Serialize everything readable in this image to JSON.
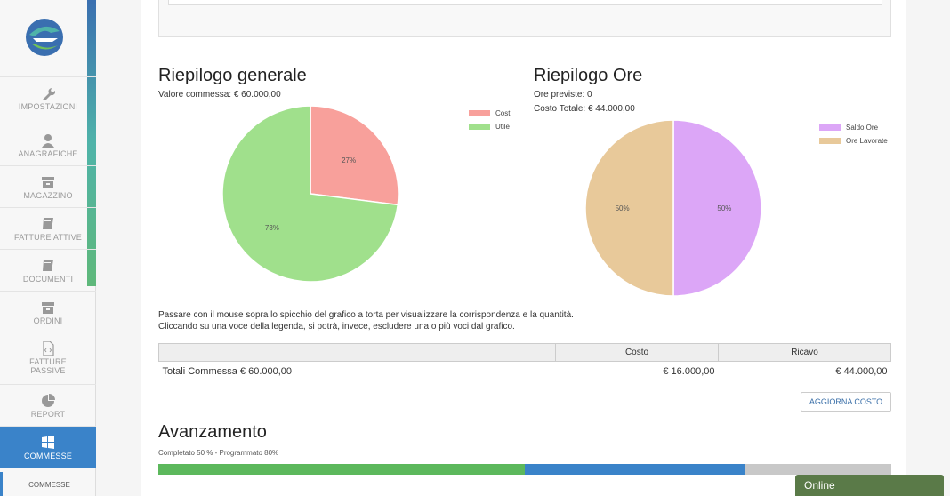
{
  "sidebar": {
    "items": [
      {
        "label": "IMPOSTAZIONI",
        "icon": "wrench-icon"
      },
      {
        "label": "ANAGRAFICHE",
        "icon": "user-icon"
      },
      {
        "label": "MAGAZZINO",
        "icon": "archive-icon"
      },
      {
        "label": "FATTURE ATTIVE",
        "icon": "book-icon"
      },
      {
        "label": "DOCUMENTI",
        "icon": "book-icon"
      },
      {
        "label": "ORDINI",
        "icon": "archive-icon"
      },
      {
        "label": "FATTURE\nPASSIVE",
        "icon": "file-code-icon"
      },
      {
        "label": "REPORT",
        "icon": "pie-chart-icon"
      },
      {
        "label": "COMMESSE",
        "icon": "windows-icon",
        "active": true
      }
    ],
    "sub_item": "COMMESSE"
  },
  "summary": {
    "title": "Riepilogo generale",
    "valore": "Valore commessa: € 60.000,00",
    "legend": [
      {
        "label": "Costi",
        "color": "#f8a09b"
      },
      {
        "label": "Utile",
        "color": "#a0e08c"
      }
    ]
  },
  "hours": {
    "title": "Riepilogo Ore",
    "ore_previste": "Ore previste: 0",
    "costo_totale": "Costo Totale: € 44.000,00",
    "legend": [
      {
        "label": "Saldo Ore",
        "color": "#dca6f7"
      },
      {
        "label": "Ore Lavorate",
        "color": "#e8c99a"
      }
    ]
  },
  "chart_data": [
    {
      "type": "pie",
      "labels": [
        "Costi",
        "Utile"
      ],
      "values": [
        27,
        73
      ],
      "value_labels": [
        "27%",
        "73%"
      ],
      "colors": [
        "#f8a09b",
        "#a0e08c"
      ]
    },
    {
      "type": "pie",
      "labels": [
        "Saldo Ore",
        "Ore Lavorate"
      ],
      "values": [
        50,
        50
      ],
      "value_labels": [
        "50%",
        "50%"
      ],
      "colors": [
        "#dca6f7",
        "#e8c99a"
      ]
    }
  ],
  "hint": {
    "line1": "Passare con il mouse sopra lo spicchio del grafico a torta per visualizzare la corrispondenza e la quantità.",
    "line2": "Cliccando su una voce della legenda, si potrà, invece, escludere una o più voci dal grafico."
  },
  "table": {
    "headers": [
      "",
      "Costo",
      "Ricavo"
    ],
    "row": [
      "Totali Commessa € 60.000,00",
      "€ 16.000,00",
      "€ 44.000,00"
    ]
  },
  "aggiorna_button": "AGGIORNA COSTO",
  "progress": {
    "title": "Avanzamento",
    "label": "Completato 50 % - Programmato 80%",
    "completed": 50,
    "scheduled": 80,
    "colors": {
      "completed": "#5cb85c",
      "scheduled": "#3a83c9",
      "rest": "#c8c8c8"
    }
  },
  "status": "Online"
}
